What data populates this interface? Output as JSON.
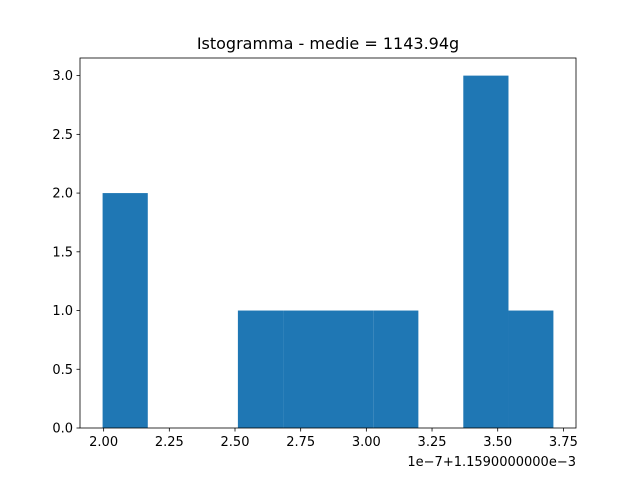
{
  "chart_data": {
    "type": "histogram",
    "title": "Istogramma - medie = 1143.94g",
    "x_offset_label": "1e−7+1.1590000000e−3",
    "bins": [
      1.996,
      2.168,
      2.339,
      2.511,
      2.683,
      2.854,
      3.026,
      3.198,
      3.369,
      3.541,
      3.712
    ],
    "counts": [
      2,
      0,
      0,
      1,
      1,
      1,
      1,
      0,
      3,
      1
    ],
    "color": "#1f77b4",
    "xlim": [
      1.91,
      3.798
    ],
    "xticks": [
      {
        "value": 2,
        "label": "2.00"
      },
      {
        "value": 2.25,
        "label": "2.25"
      },
      {
        "value": 2.5,
        "label": "2.50"
      },
      {
        "value": 2.75,
        "label": "2.75"
      },
      {
        "value": 3,
        "label": "3.00"
      },
      {
        "value": 3.25,
        "label": "3.25"
      },
      {
        "value": 3.5,
        "label": "3.50"
      },
      {
        "value": 3.75,
        "label": "3.75"
      }
    ],
    "ylim": [
      0,
      3.15
    ],
    "yticks": [
      {
        "value": 0,
        "label": "0.0"
      },
      {
        "value": 0.5,
        "label": "0.5"
      },
      {
        "value": 1,
        "label": "1.0"
      },
      {
        "value": 1.5,
        "label": "1.5"
      },
      {
        "value": 2,
        "label": "2.0"
      },
      {
        "value": 2.5,
        "label": "2.5"
      },
      {
        "value": 3,
        "label": "3.0"
      }
    ]
  }
}
